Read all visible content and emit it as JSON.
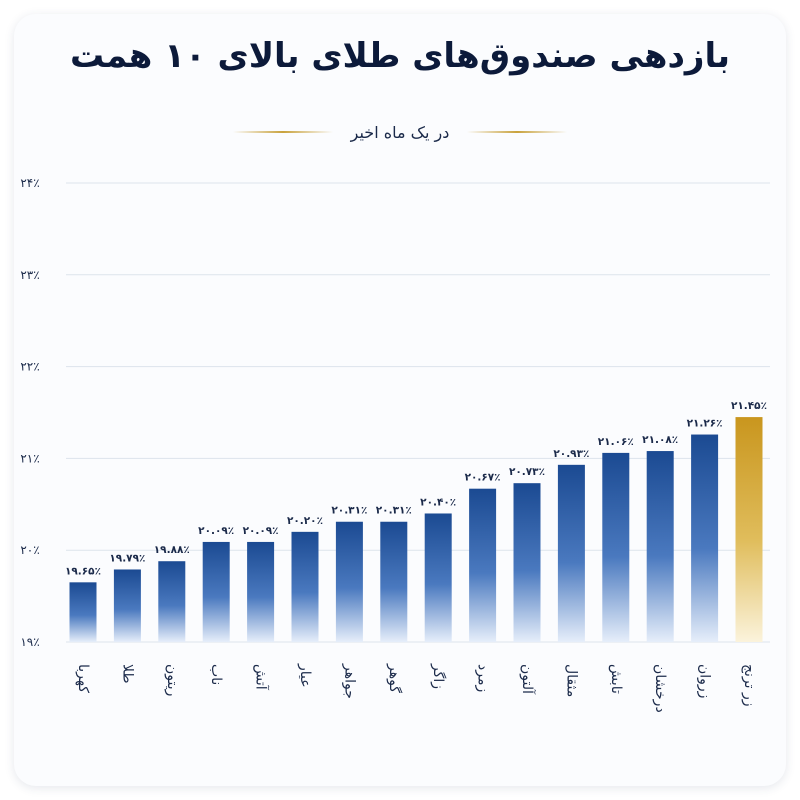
{
  "header": {
    "title": "بازدهی صندوق‌های طلای بالای ۱۰ همت",
    "subtitle": "در یک ماه اخیر"
  },
  "colors": {
    "bar_top": "#1b4a92",
    "bar_bottom": "#e6eefa",
    "highlight_top": "#c9961e",
    "highlight_bottom": "#fbf3dc",
    "accent_line": "#c9a23c",
    "text": "#1b2a4a"
  },
  "chart_data": {
    "type": "bar",
    "title": "بازدهی صندوق‌های طلای بالای ۱۰ همت",
    "subtitle": "در یک ماه اخیر",
    "xlabel": "",
    "ylabel": "",
    "ylim": [
      19,
      24
    ],
    "yticks": [
      19,
      20,
      21,
      22,
      23,
      24
    ],
    "ytick_labels": [
      "۱۹٪",
      "۲۰٪",
      "۲۱٪",
      "۲۲٪",
      "۲۳٪",
      "۲۴٪"
    ],
    "grid": true,
    "categories": [
      "کهربا",
      "طلا",
      "ریتون",
      "ناب",
      "آتش",
      "عیار",
      "جواهر",
      "گوهر",
      "زاگر",
      "زمرد",
      "آلتون",
      "مثقال",
      "تابش",
      "درخشان",
      "زروان",
      "زر ترنج"
    ],
    "values": [
      19.65,
      19.79,
      19.88,
      20.09,
      20.09,
      20.2,
      20.31,
      20.31,
      20.4,
      20.67,
      20.73,
      20.93,
      21.06,
      21.08,
      21.26,
      21.45
    ],
    "value_labels": [
      "۱۹.۶۵٪",
      "۱۹.۷۹٪",
      "۱۹.۸۸٪",
      "۲۰.۰۹٪",
      "۲۰.۰۹٪",
      "۲۰.۲۰٪",
      "۲۰.۳۱٪",
      "۲۰.۳۱٪",
      "۲۰.۴۰٪",
      "۲۰.۶۷٪",
      "۲۰.۷۳٪",
      "۲۰.۹۳٪",
      "۲۱.۰۶٪",
      "۲۱.۰۸٪",
      "۲۱.۲۶٪",
      "۲۱.۴۵٪"
    ],
    "highlight_index": 15
  }
}
